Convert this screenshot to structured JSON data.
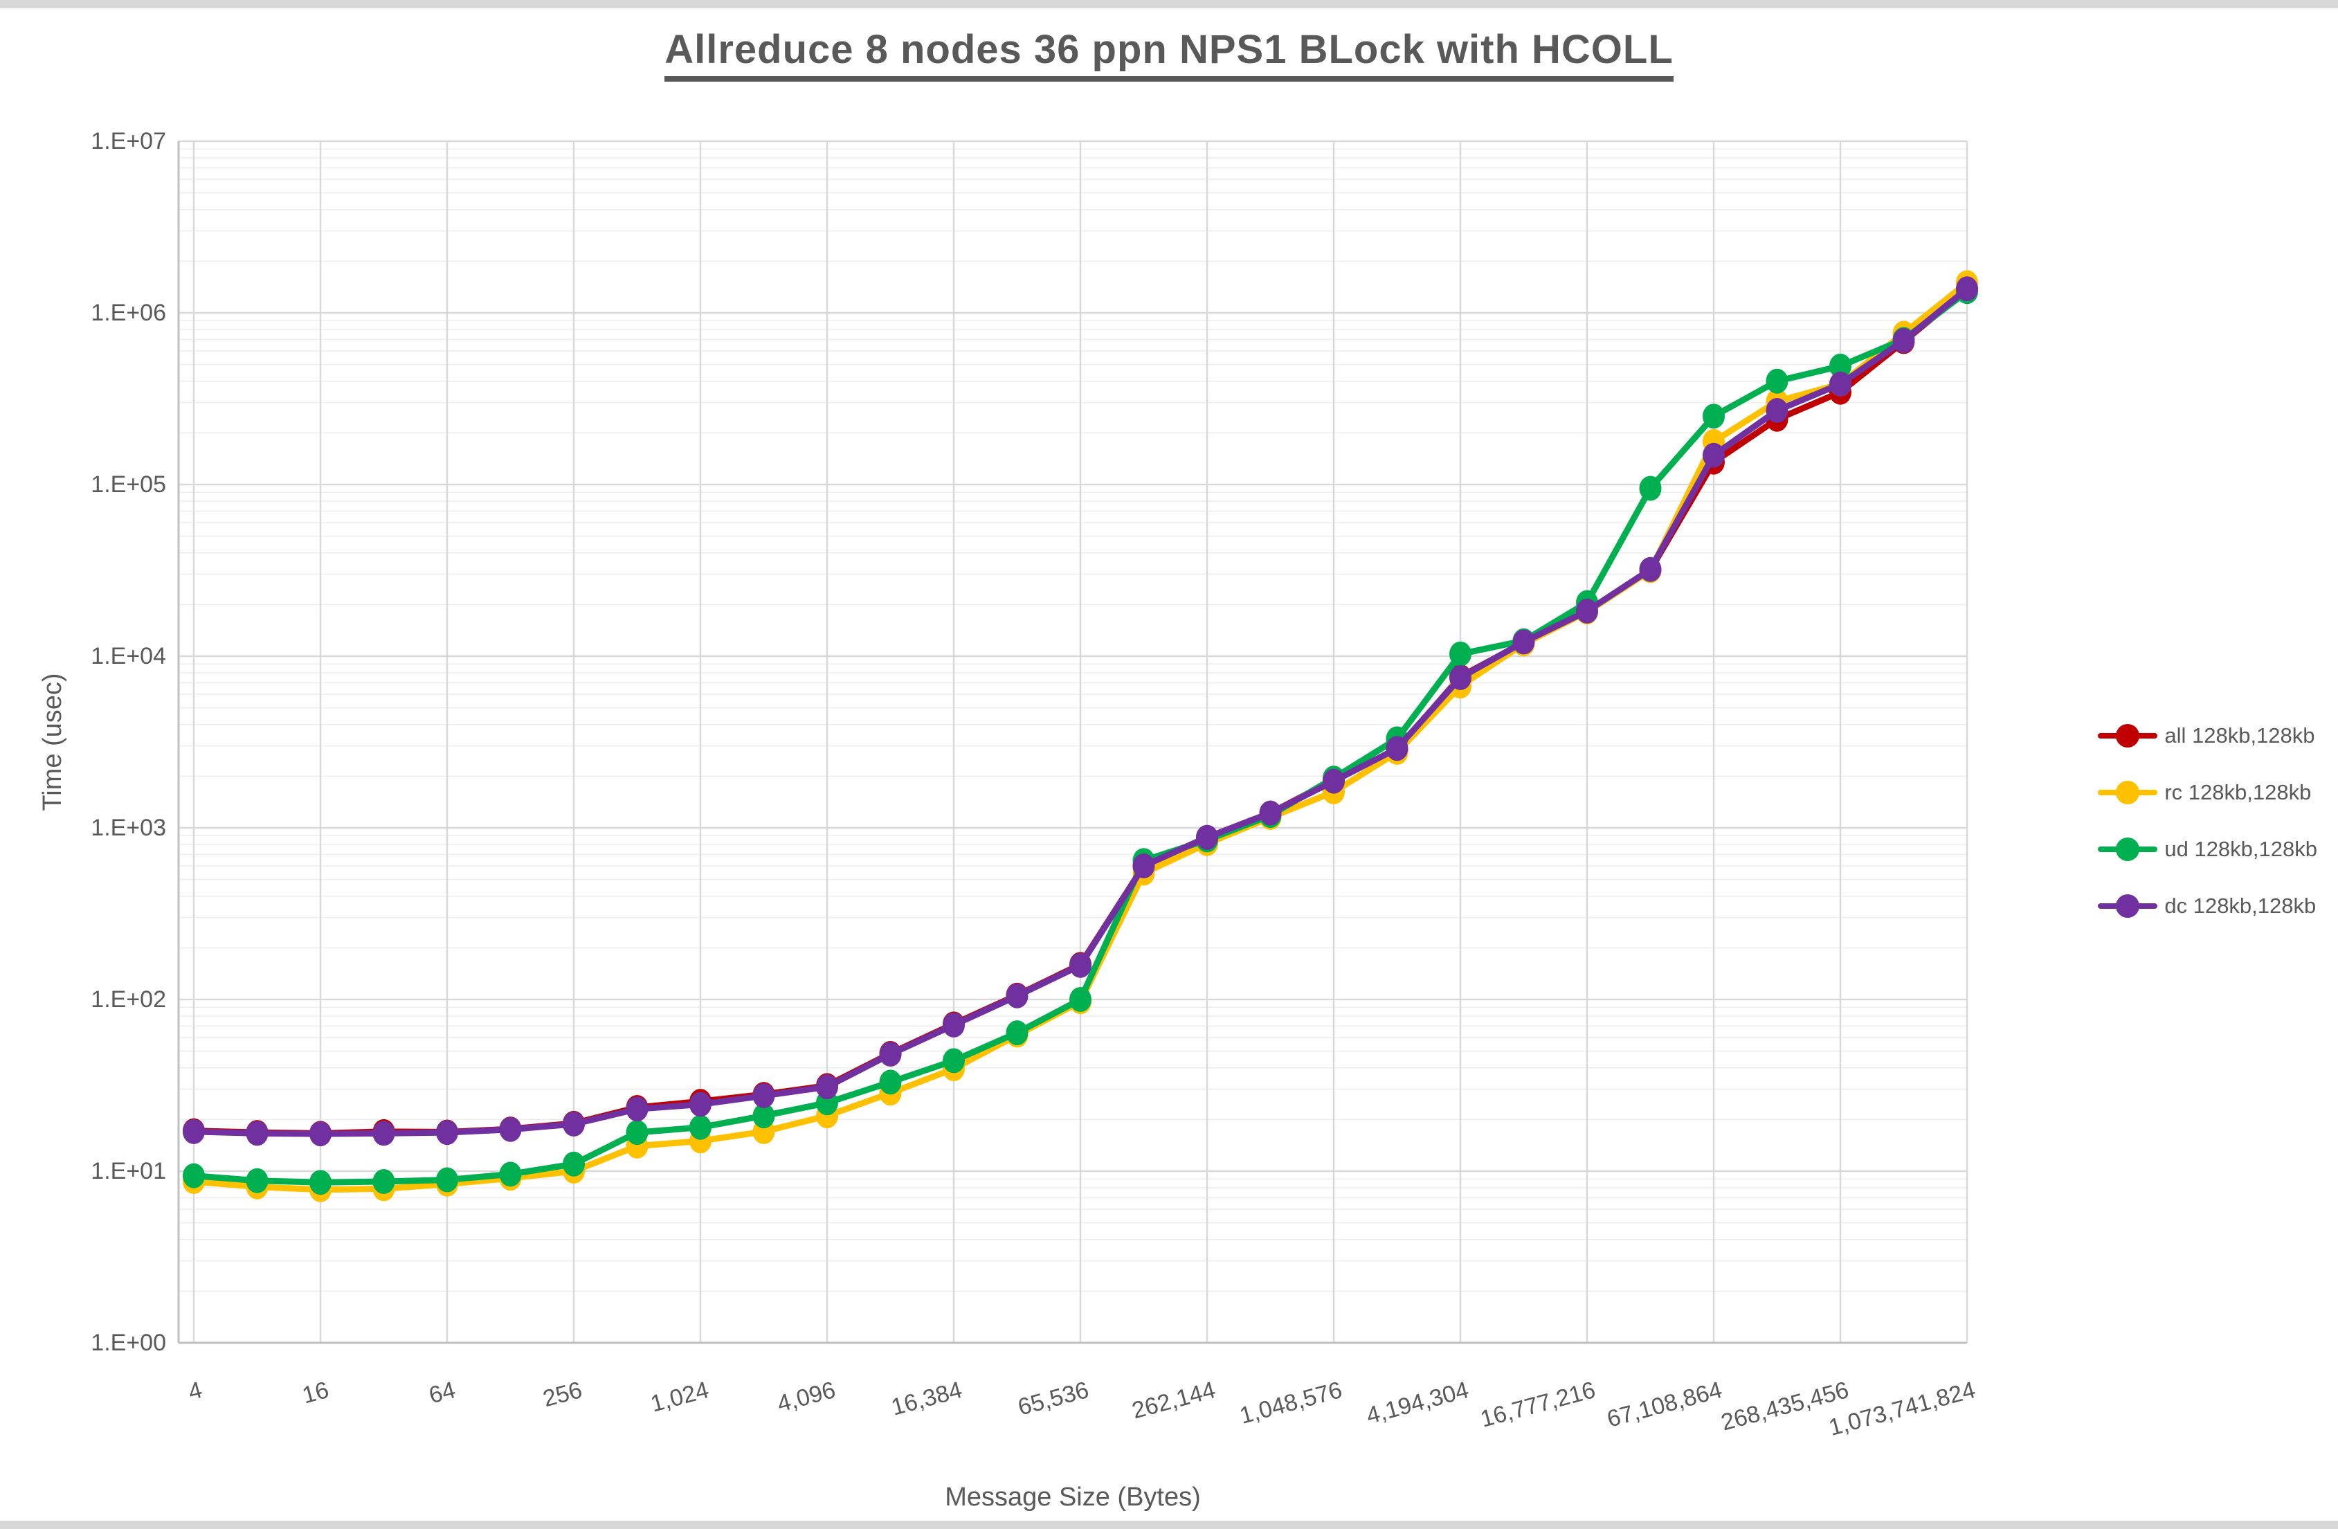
{
  "title": "Allreduce 8 nodes 36 ppn NPS1 BLock with HCOLL",
  "x_axis": {
    "label": "Message Size (Bytes)",
    "tick_labels": [
      "4",
      "16",
      "64",
      "256",
      "1,024",
      "4,096",
      "16,384",
      "65,536",
      "262,144",
      "1,048,576",
      "4,194,304",
      "16,777,216",
      "67,108,864",
      "268,435,456",
      "1,073,741,824"
    ]
  },
  "y_axis": {
    "label": "Time (usec)",
    "tick_labels": [
      "1.E+00",
      "1.E+01",
      "1.E+02",
      "1.E+03",
      "1.E+04",
      "1.E+05",
      "1.E+06",
      "1.E+07"
    ]
  },
  "legend": [
    {
      "label": "all 128kb,128kb",
      "color": "#C00000"
    },
    {
      "label": "rc 128kb,128kb",
      "color": "#FFC000"
    },
    {
      "label": "ud 128kb,128kb",
      "color": "#00B050"
    },
    {
      "label": "dc 128kb,128kb",
      "color": "#7030A0"
    }
  ],
  "chart_data": {
    "type": "line",
    "x_scale": "log2",
    "y_scale": "log10",
    "ylim": [
      1,
      10000000
    ],
    "xlim": [
      4,
      1073741824
    ],
    "grid": "log major+minor horizontal, major vertical",
    "legend_position": "right",
    "x": [
      4,
      8,
      16,
      32,
      64,
      128,
      256,
      512,
      1024,
      2048,
      4096,
      8192,
      16384,
      32768,
      65536,
      131072,
      262144,
      524288,
      1048576,
      2097152,
      4194304,
      8388608,
      16777216,
      33554432,
      67108864,
      134217728,
      268435456,
      536870912,
      1073741824
    ],
    "series": [
      {
        "name": "all 128kb,128kb",
        "color": "#C00000",
        "values": [
          17.2,
          16.8,
          16.6,
          17.0,
          16.9,
          17.6,
          19.0,
          23.5,
          25.5,
          28,
          31.5,
          48.5,
          72,
          106,
          160,
          600,
          880,
          1220,
          1900,
          2850,
          7600,
          12000,
          18200,
          31800,
          135000,
          240000,
          345000,
          680000,
          1370000
        ]
      },
      {
        "name": "rc 128kb,128kb",
        "color": "#FFC000",
        "values": [
          8.7,
          8.1,
          7.8,
          7.9,
          8.4,
          9.1,
          10.0,
          14.0,
          15.0,
          17.0,
          21.0,
          28.5,
          39.5,
          62,
          97,
          545,
          810,
          1150,
          1620,
          2750,
          6700,
          11800,
          18100,
          31500,
          178000,
          305000,
          385000,
          760000,
          1500000
        ]
      },
      {
        "name": "ud 128kb,128kb",
        "color": "#00B050",
        "values": [
          9.4,
          8.8,
          8.6,
          8.7,
          8.9,
          9.6,
          11.0,
          16.8,
          18.0,
          21.0,
          25.0,
          33,
          44,
          64,
          100,
          645,
          850,
          1180,
          1950,
          3300,
          10300,
          12300,
          20500,
          95000,
          250000,
          400000,
          490000,
          700000,
          1330000
        ]
      },
      {
        "name": "dc 128kb,128kb",
        "color": "#7030A0",
        "values": [
          17.0,
          16.6,
          16.5,
          16.6,
          16.8,
          17.5,
          18.8,
          23.0,
          24.5,
          27.5,
          31.0,
          48,
          71,
          105,
          158,
          600,
          880,
          1220,
          1870,
          2900,
          7500,
          12100,
          18300,
          32000,
          148000,
          270000,
          385000,
          690000,
          1380000
        ]
      }
    ]
  }
}
